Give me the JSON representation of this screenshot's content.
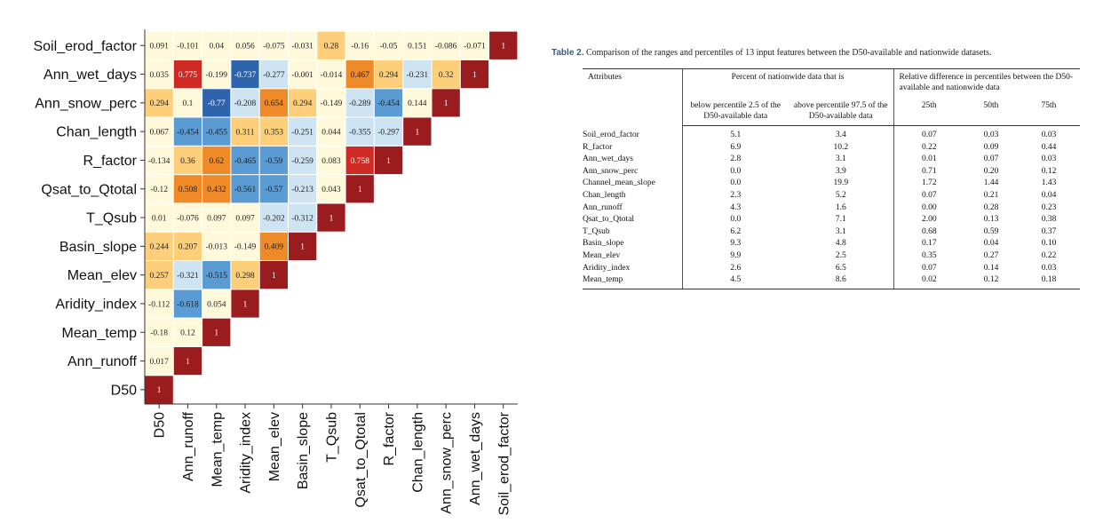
{
  "chart_data": {
    "type": "heatmap",
    "variables": [
      "D50",
      "Ann_runoff",
      "Mean_temp",
      "Aridity_index",
      "Mean_elev",
      "Basin_slope",
      "T_Qsub",
      "Qsat_to_Qtotal",
      "R_factor",
      "Chan_length",
      "Ann_snow_perc",
      "Ann_wet_days",
      "Soil_erod_factor"
    ],
    "matrix": [
      [
        1
      ],
      [
        0.017,
        1
      ],
      [
        -0.18,
        0.12,
        1
      ],
      [
        -0.112,
        -0.618,
        0.054,
        1
      ],
      [
        0.257,
        -0.321,
        -0.515,
        0.298,
        1
      ],
      [
        0.244,
        0.207,
        -0.013,
        -0.149,
        0.409,
        1
      ],
      [
        0.01,
        -0.076,
        0.097,
        0.097,
        -0.202,
        -0.312,
        1
      ],
      [
        -0.12,
        0.508,
        0.432,
        -0.561,
        -0.57,
        -0.213,
        0.043,
        1
      ],
      [
        -0.134,
        0.36,
        0.62,
        -0.465,
        -0.59,
        -0.259,
        0.083,
        0.758,
        1
      ],
      [
        0.067,
        -0.454,
        -0.455,
        0.311,
        0.353,
        -0.251,
        0.044,
        -0.355,
        -0.297,
        1
      ],
      [
        0.294,
        0.1,
        -0.77,
        -0.208,
        0.654,
        0.294,
        -0.149,
        -0.289,
        -0.454,
        0.144,
        1
      ],
      [
        0.035,
        0.775,
        -0.199,
        -0.737,
        -0.277,
        -0.001,
        -0.014,
        0.467,
        0.294,
        -0.231,
        0.32,
        1
      ],
      [
        0.091,
        -0.101,
        0.04,
        0.056,
        -0.075,
        -0.031,
        0.28,
        -0.16,
        -0.05,
        0.151,
        -0.086,
        -0.071,
        1
      ]
    ],
    "labels": [
      [
        "1"
      ],
      [
        "0.017",
        "1"
      ],
      [
        "-0.18",
        "0.12",
        "1"
      ],
      [
        "-0.112",
        "-0.618",
        "0.054",
        "1"
      ],
      [
        "0.257",
        "-0.321",
        "-0.515",
        "0.298",
        "1"
      ],
      [
        "0.244",
        "0.207",
        "-0.013",
        "-0.149",
        "0.409",
        "1"
      ],
      [
        "0.01",
        "-0.076",
        "0.097",
        "0.097",
        "-0.202",
        "-0.312",
        "1"
      ],
      [
        "-0.12",
        "0.508",
        "0.432",
        "-0.561",
        "-0.57",
        "-0.213",
        "0.043",
        "1"
      ],
      [
        "-0.134",
        "0.36",
        "0.62",
        "-0.465",
        "-0.59",
        "-0.259",
        "0.083",
        "0.758",
        "1"
      ],
      [
        "0.067",
        "-0.454",
        "-0.455",
        "0.311",
        "0.353",
        "-0.251",
        "0.044",
        "-0.355",
        "-0.297",
        "1"
      ],
      [
        "0.294",
        "0.1",
        "-0.77",
        "-0.208",
        "0.654",
        "0.294",
        "-0.149",
        "-0.289",
        "-0.454",
        "0.144",
        "1"
      ],
      [
        "0.035",
        "0.775",
        "-0.199",
        "-0.737",
        "-0.277",
        "-0.001",
        "-0.014",
        "0.467",
        "0.294",
        "-0.231",
        "0.32",
        "1"
      ],
      [
        "0.091",
        "-0.101",
        "0.04",
        "0.056",
        "-0.075",
        "-0.031",
        "0.28",
        "-0.16",
        "-0.05",
        "0.151",
        "-0.086",
        "-0.071",
        "1"
      ]
    ],
    "layout": "lower-triangle",
    "colors": {
      "diagonal": "#9b1c1f",
      "strong_positive": "#cf2b25",
      "positive_mid": "#ef8a28",
      "positive_light": "#fdcf7a",
      "near_zero": "#fff9dc",
      "negative_light": "#cfe4f3",
      "negative_mid": "#5b9bd3",
      "strong_negative": "#2e63ae"
    }
  },
  "table": {
    "caption_label": "Table 2.",
    "caption_text": " Comparison of the ranges and percentiles of 13 input features between the D50-available and nationwide datasets.",
    "header": {
      "attributes": "Attributes",
      "group1": "Percent of nationwide data that is",
      "group2": "Relative difference in percentiles between the D50-available and nationwide data",
      "below": "below percentile 2.5 of the D50-available data",
      "above": "above percentile 97.5 of the D50-available data",
      "p25": "25th",
      "p50": "50th",
      "p75": "75th"
    },
    "rows": [
      {
        "name": "Soil_erod_factor",
        "below": "5.1",
        "above": "3.4",
        "p25": "0.07",
        "p50": "0.03",
        "p75": "0.03"
      },
      {
        "name": "R_factor",
        "below": "6.9",
        "above": "10.2",
        "p25": "0.22",
        "p50": "0.09",
        "p75": "0.44"
      },
      {
        "name": "Ann_wet_days",
        "below": "2.8",
        "above": "3.1",
        "p25": "0.01",
        "p50": "0.07",
        "p75": "0.03"
      },
      {
        "name": "Ann_snow_perc",
        "below": "0.0",
        "above": "3.9",
        "p25": "0.71",
        "p50": "0.20",
        "p75": "0.12"
      },
      {
        "name": "Channel_mean_slope",
        "below": "0.0",
        "above": "19.9",
        "p25": "1.72",
        "p50": "1.44",
        "p75": "1.43"
      },
      {
        "name": "Chan_length",
        "below": "2.3",
        "above": "5.2",
        "p25": "0.07",
        "p50": "0.21",
        "p75": "0.04"
      },
      {
        "name": "Ann_runoff",
        "below": "4.3",
        "above": "1.6",
        "p25": "0.00",
        "p50": "0.28",
        "p75": "0.23"
      },
      {
        "name": "Qsat_to_Qtotal",
        "below": "0.0",
        "above": "7.1",
        "p25": "2.00",
        "p50": "0.13",
        "p75": "0.38"
      },
      {
        "name": "T_Qsub",
        "below": "6.2",
        "above": "3.1",
        "p25": "0.68",
        "p50": "0.59",
        "p75": "0.37"
      },
      {
        "name": "Basin_slope",
        "below": "9.3",
        "above": "4.8",
        "p25": "0.17",
        "p50": "0.04",
        "p75": "0.10"
      },
      {
        "name": "Mean_elev",
        "below": "9.9",
        "above": "2.5",
        "p25": "0.35",
        "p50": "0.27",
        "p75": "0.22"
      },
      {
        "name": "Aridity_index",
        "below": "2.6",
        "above": "6.5",
        "p25": "0.07",
        "p50": "0.14",
        "p75": "0.03"
      },
      {
        "name": "Mean_temp",
        "below": "4.5",
        "above": "8.6",
        "p25": "0.02",
        "p50": "0.12",
        "p75": "0.18"
      }
    ]
  }
}
